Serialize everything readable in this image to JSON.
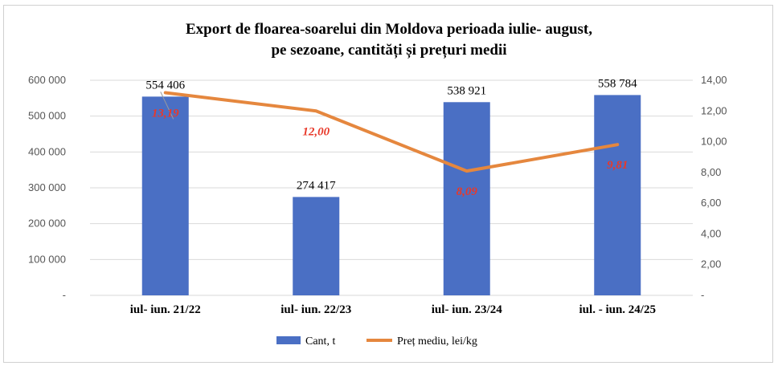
{
  "chart_data": {
    "type": "bar",
    "title_line1": "Export de floarea-soarelui  din  Moldova perioada iulie- august,",
    "title_line2": "pe sezoane, cantități și prețuri medii",
    "categories": [
      "iul- iun. 21/22",
      "iul- iun. 22/23",
      "iul- iun. 23/24",
      "iul. - iun. 24/25"
    ],
    "series": [
      {
        "name": "Cant, t",
        "type": "bar",
        "axis": "left",
        "color": "#4a6fc4",
        "values": [
          554406,
          274417,
          538921,
          558784
        ],
        "labels": [
          "554 406",
          "274 417",
          "538 921",
          "558 784"
        ]
      },
      {
        "name": "Preț mediu, lei/kg",
        "type": "line",
        "axis": "right",
        "color": "#e5873e",
        "values": [
          13.19,
          12.0,
          8.09,
          9.81
        ],
        "labels": [
          "13,19",
          "12,00",
          "8,09",
          "9,81"
        ]
      }
    ],
    "y_left": {
      "range": [
        0,
        600000
      ],
      "ticks": [
        0,
        100000,
        200000,
        300000,
        400000,
        500000,
        600000
      ],
      "tick_labels": [
        "-",
        "100 000",
        "200 000",
        "300 000",
        "400 000",
        "500 000",
        "600 000"
      ]
    },
    "y_right": {
      "range": [
        0,
        14
      ],
      "ticks": [
        0,
        2,
        4,
        6,
        8,
        10,
        12,
        14
      ],
      "tick_labels": [
        "-",
        "2,00",
        "4,00",
        "6,00",
        "8,00",
        "10,00",
        "12,00",
        "14,00"
      ]
    },
    "grid": true,
    "legend_position": "bottom",
    "label_color": "#e8392a"
  }
}
